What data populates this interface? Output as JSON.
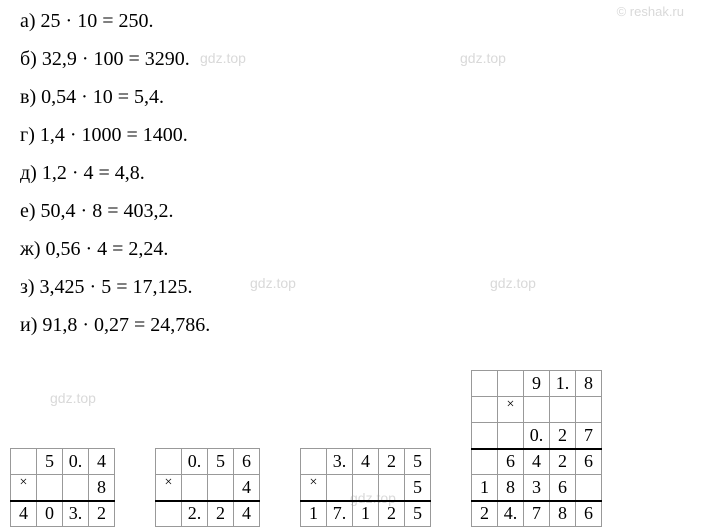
{
  "watermarks": {
    "reshak": "© reshak.ru",
    "gdz": "gdz.top"
  },
  "equations": {
    "a": "а) 25 · 10 = 250.",
    "b": "б) 32,9 · 100 = 3290.",
    "v": "в) 0,54 · 10 = 5,4.",
    "g": "г) 1,4 · 1000 = 1400.",
    "d": "д) 1,2 · 4 = 4,8.",
    "e": "е) 50,4 · 8 = 403,2.",
    "zh": "ж) 0,56 · 4 = 2,24.",
    "z": "з) 3,425 · 5 = 17,125.",
    "i": "и) 91,8 · 0,27 = 24,786."
  },
  "calc1": {
    "r1": [
      "",
      "5",
      "0.",
      "4"
    ],
    "r2": [
      "×",
      "",
      "",
      "8"
    ],
    "r3": [
      "4",
      "0",
      "3.",
      "2"
    ]
  },
  "calc2": {
    "r1": [
      "",
      "0.",
      "5",
      "6"
    ],
    "r2": [
      "×",
      "",
      "",
      "4"
    ],
    "r3": [
      "",
      "2.",
      "2",
      "4"
    ]
  },
  "calc3": {
    "r1": [
      "",
      "3.",
      "4",
      "2",
      "5"
    ],
    "r2": [
      "×",
      "",
      "",
      "",
      "5"
    ],
    "r3": [
      "1",
      "7.",
      "1",
      "2",
      "5"
    ]
  },
  "calc4": {
    "r1": [
      "",
      "",
      "9",
      "1.",
      "8"
    ],
    "r2": [
      "",
      "×",
      "",
      "",
      ""
    ],
    "r3": [
      "",
      "",
      "0.",
      "2",
      "7"
    ],
    "r4": [
      "",
      "6",
      "4",
      "2",
      "6"
    ],
    "r5": [
      "1",
      "8",
      "3",
      "6",
      ""
    ],
    "r6": [
      "2",
      "4.",
      "7",
      "8",
      "6"
    ]
  }
}
